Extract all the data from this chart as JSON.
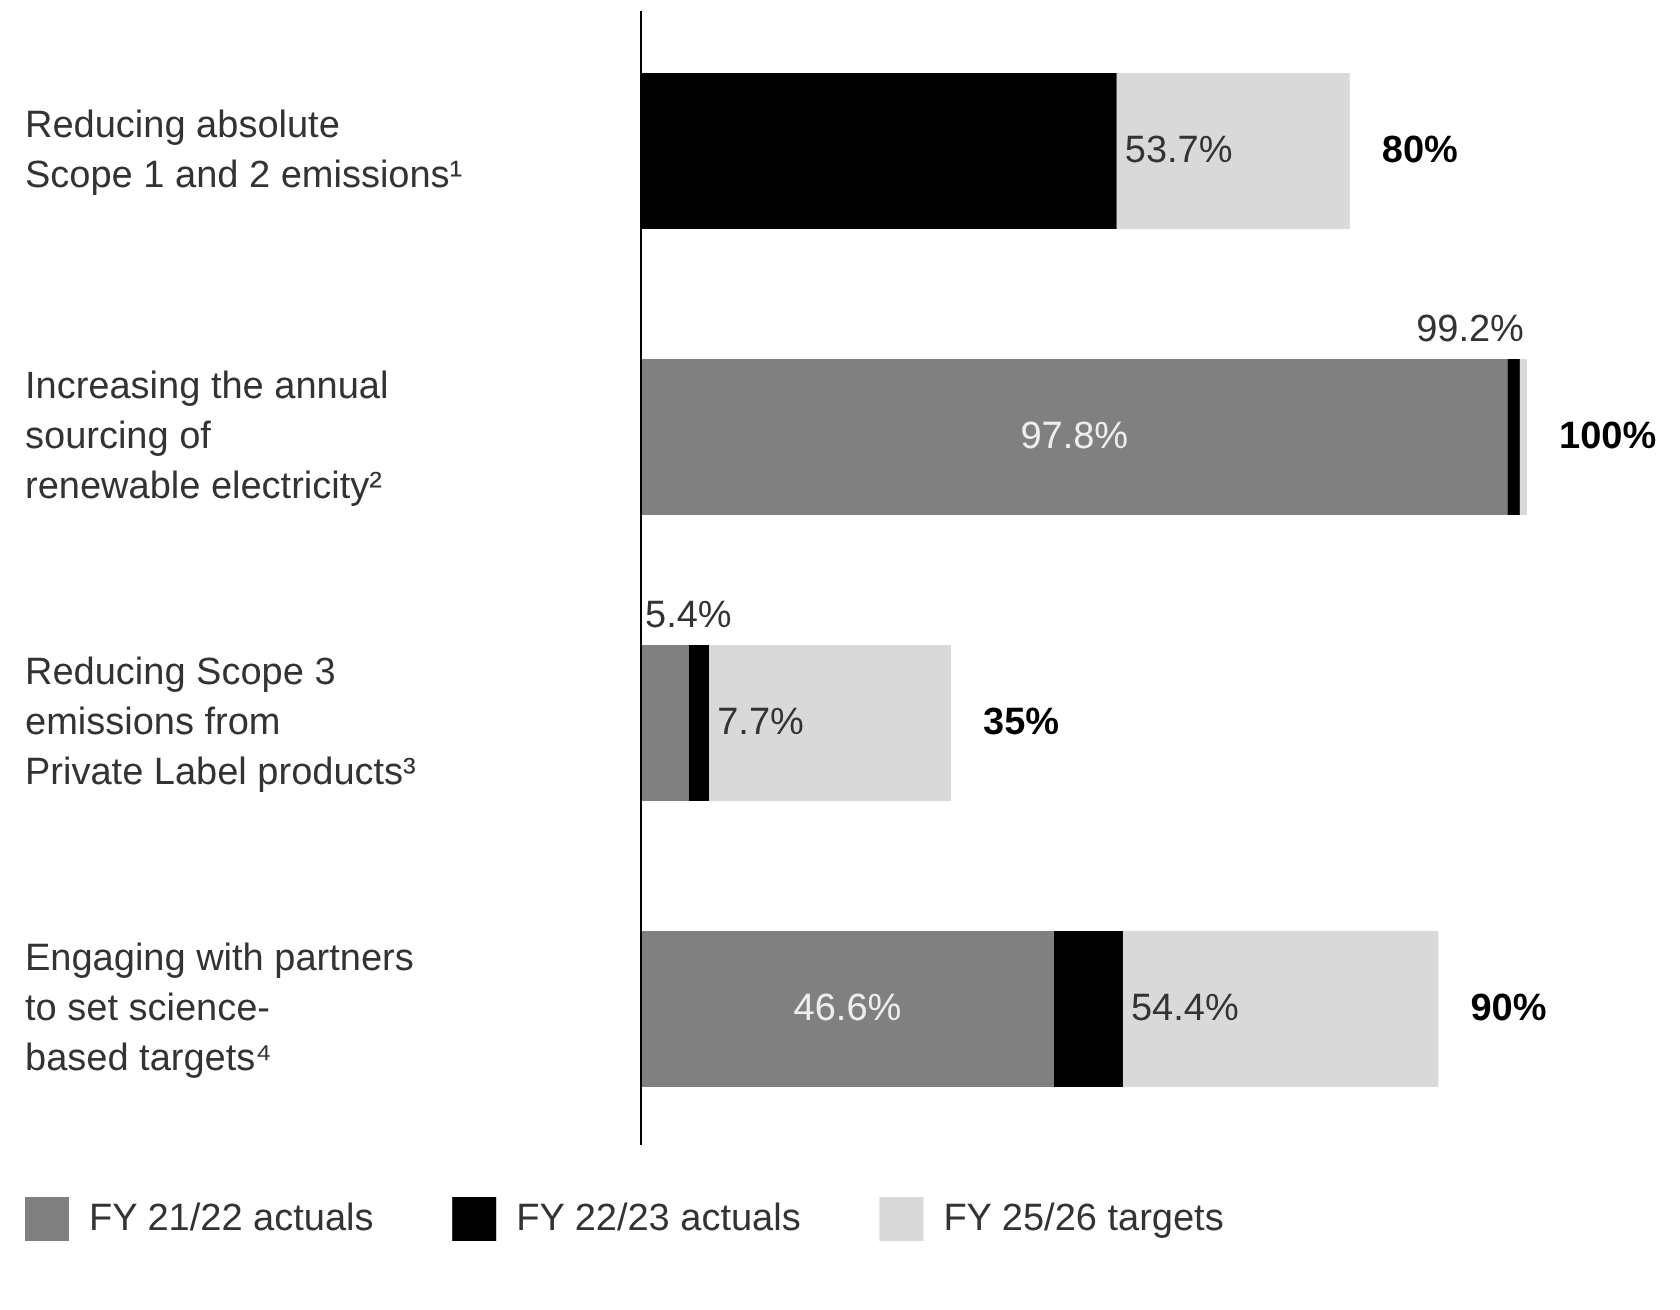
{
  "chart_data": {
    "type": "bar",
    "orientation": "horizontal",
    "stacked": true,
    "legend": "bottom",
    "categories": [
      "Reducing absolute\nScope 1 and 2 emissions¹",
      "Increasing the annual\nsourcing of\nrenewable electricity²",
      "Reducing Scope 3\nemissions from\nPrivate Label products³",
      "Engaging with partners\nto set science-\nbased targets⁴"
    ],
    "series": [
      {
        "name": "FY 21/22 actuals",
        "color": "#808080",
        "values": [
          null,
          97.8,
          5.4,
          46.6
        ],
        "value_labels": [
          null,
          "97.8%",
          "5.4%",
          "46.6%"
        ]
      },
      {
        "name": "FY 22/23 actuals",
        "color": "#000000",
        "values": [
          53.7,
          1.4,
          2.3,
          7.8
        ]
      },
      {
        "name": "FY 25/26 targets",
        "color": "#d9d9d9",
        "values": [
          26.3,
          0.8,
          27.3,
          35.6
        ]
      }
    ],
    "totals": [
      "80%",
      "100%",
      "35%",
      "90%"
    ],
    "annotations": [
      {
        "text": "53.7%",
        "x": 53.7,
        "y": "Reducing absolute\nScope 1 and 2 emissions¹"
      },
      {
        "text": "99.2%",
        "x": 99.2,
        "y": "Increasing the annual\nsourcing of\nrenewable electricity²"
      },
      {
        "text": "7.7%",
        "x": 7.7,
        "y": "Reducing Scope 3\nemissions from\nPrivate Label products³"
      },
      {
        "text": "54.4%",
        "x": 54.4,
        "y": "Engaging with partners\nto set science-\nbased targets⁴"
      }
    ]
  }
}
